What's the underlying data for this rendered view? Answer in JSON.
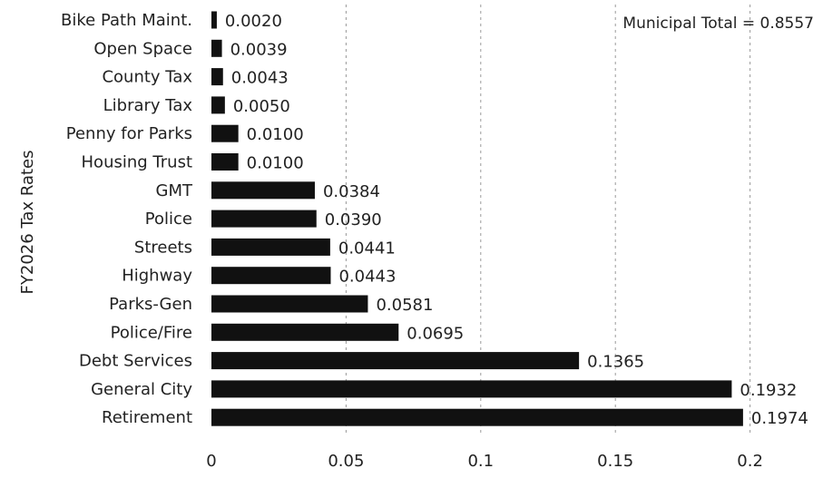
{
  "chart_data": {
    "type": "bar",
    "orientation": "horizontal",
    "ylabel": "FY2026 Tax Rates",
    "annotation": "Municipal Total = 0.8557",
    "xlim": [
      0,
      0.2
    ],
    "xticks": [
      0,
      0.05,
      0.1,
      0.15,
      0.2
    ],
    "xtick_labels": [
      "0",
      "0.05",
      "0.1",
      "0.15",
      "0.2"
    ],
    "grid": "vertical dashed",
    "categories": [
      "Bike Path Maint.",
      "Open Space",
      "County Tax",
      "Library Tax",
      "Penny for Parks",
      "Housing Trust",
      "GMT",
      "Police",
      "Streets",
      "Highway",
      "Parks-Gen",
      "Police/Fire",
      "Debt Services",
      "General City",
      "Retirement"
    ],
    "values": [
      0.002,
      0.0039,
      0.0043,
      0.005,
      0.01,
      0.01,
      0.0384,
      0.039,
      0.0441,
      0.0443,
      0.0581,
      0.0695,
      0.1365,
      0.1932,
      0.1974
    ],
    "value_labels": [
      "0.0020",
      "0.0039",
      "0.0043",
      "0.0050",
      "0.0100",
      "0.0100",
      "0.0384",
      "0.0390",
      "0.0441",
      "0.0443",
      "0.0581",
      "0.0695",
      "0.1365",
      "0.1932",
      "0.1974"
    ],
    "colors": {
      "bar": "#111111",
      "grid": "#999999",
      "text": "#222222"
    }
  }
}
